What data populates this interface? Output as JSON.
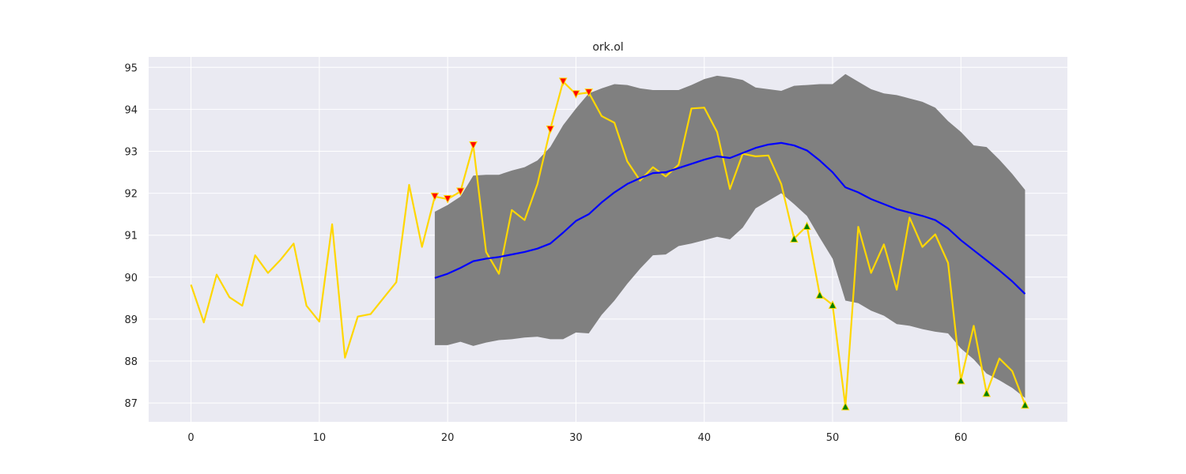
{
  "chart_data": {
    "type": "line",
    "title": "ork.ol",
    "xlabel": "",
    "ylabel": "",
    "xlim": [
      -3.3,
      68.3
    ],
    "ylim": [
      86.55,
      95.25
    ],
    "xticks": [
      0,
      10,
      20,
      30,
      40,
      50,
      60
    ],
    "yticks": [
      87,
      88,
      89,
      90,
      91,
      92,
      93,
      94,
      95
    ],
    "grid": true,
    "legend": "none",
    "colors": {
      "background": "#eaeaf2",
      "grid": "#ffffff",
      "price": "#ffd700",
      "moving_average": "#0000ff",
      "band": "#808080",
      "sell_marker": "#ff0000",
      "buy_marker": "#008000"
    },
    "series": [
      {
        "x": [
          0,
          1,
          2,
          3,
          4,
          5,
          6,
          7,
          8,
          9,
          10,
          11,
          12,
          13,
          14,
          15,
          16,
          17,
          18,
          19,
          20,
          21,
          22,
          23,
          24,
          25,
          26,
          27,
          28,
          29,
          30,
          31,
          32,
          33,
          34,
          35,
          36,
          37,
          38,
          39,
          40,
          41,
          42,
          43,
          44,
          45,
          46,
          47,
          48,
          49,
          50,
          51,
          52,
          53,
          54,
          55,
          56,
          57,
          58,
          59,
          60,
          61,
          62,
          63,
          64,
          65
        ],
        "values": [
          89.82,
          88.92,
          90.06,
          89.52,
          89.32,
          90.52,
          90.1,
          90.42,
          90.8,
          89.32,
          88.94,
          91.26,
          88.08,
          89.06,
          89.12,
          89.5,
          89.88,
          92.2,
          90.72,
          91.92,
          91.86,
          92.04,
          93.14,
          90.6,
          90.08,
          91.6,
          91.36,
          92.22,
          93.52,
          94.66,
          94.36,
          94.4,
          93.84,
          93.68,
          92.76,
          92.3,
          92.62,
          92.4,
          92.68,
          94.02,
          94.04,
          93.46,
          92.1,
          92.94,
          92.88,
          92.9,
          92.22,
          90.92,
          91.22,
          89.58,
          89.34,
          86.92,
          91.2,
          90.1,
          90.78,
          89.7,
          91.42,
          90.72,
          91.02,
          90.34,
          87.54,
          88.84,
          87.24,
          88.06,
          87.76,
          86.96
        ]
      },
      {
        "x": [
          19,
          20,
          21,
          22,
          23,
          24,
          25,
          26,
          27,
          28,
          29,
          30,
          31,
          32,
          33,
          34,
          35,
          36,
          37,
          38,
          39,
          40,
          41,
          42,
          43,
          44,
          45,
          46,
          47,
          48,
          49,
          50,
          51,
          52,
          53,
          54,
          55,
          56,
          57,
          58,
          59,
          60,
          61,
          62,
          63,
          64,
          65
        ],
        "values": [
          89.98,
          90.08,
          90.22,
          90.38,
          90.44,
          90.48,
          90.54,
          90.6,
          90.68,
          90.8,
          91.06,
          91.34,
          91.5,
          91.78,
          92.02,
          92.22,
          92.36,
          92.48,
          92.5,
          92.6,
          92.7,
          92.8,
          92.88,
          92.84,
          92.96,
          93.08,
          93.16,
          93.2,
          93.14,
          93.02,
          92.78,
          92.5,
          92.14,
          92.02,
          91.86,
          91.74,
          91.62,
          91.54,
          91.46,
          91.36,
          91.16,
          90.88,
          90.64,
          90.4,
          90.16,
          89.9,
          89.6
        ]
      }
    ],
    "band": {
      "x": [
        19,
        20,
        21,
        22,
        23,
        24,
        25,
        26,
        27,
        28,
        29,
        30,
        31,
        32,
        33,
        34,
        35,
        36,
        37,
        38,
        39,
        40,
        41,
        42,
        43,
        44,
        45,
        46,
        47,
        48,
        49,
        50,
        51,
        52,
        53,
        54,
        55,
        56,
        57,
        58,
        59,
        60,
        61,
        62,
        63,
        64,
        65
      ],
      "upper": [
        91.56,
        91.72,
        91.92,
        92.42,
        92.44,
        92.44,
        92.54,
        92.62,
        92.78,
        93.1,
        93.62,
        94.02,
        94.38,
        94.5,
        94.6,
        94.58,
        94.5,
        94.46,
        94.46,
        94.46,
        94.58,
        94.72,
        94.8,
        94.76,
        94.7,
        94.52,
        94.48,
        94.44,
        94.56,
        94.58,
        94.6,
        94.6,
        94.84,
        94.66,
        94.48,
        94.38,
        94.34,
        94.26,
        94.18,
        94.04,
        93.72,
        93.46,
        93.14,
        93.1,
        92.8,
        92.46,
        92.08
      ],
      "lower": [
        88.38,
        88.38,
        88.46,
        88.36,
        88.44,
        88.5,
        88.52,
        88.56,
        88.58,
        88.52,
        88.52,
        88.68,
        88.66,
        89.1,
        89.44,
        89.84,
        90.2,
        90.52,
        90.54,
        90.74,
        90.8,
        90.88,
        90.96,
        90.9,
        91.18,
        91.64,
        91.82,
        92.0,
        91.74,
        91.46,
        90.94,
        90.44,
        89.44,
        89.38,
        89.2,
        89.08,
        88.88,
        88.84,
        88.76,
        88.7,
        88.66,
        88.3,
        88.04,
        87.7,
        87.54,
        87.36,
        87.12
      ]
    },
    "sell_markers": {
      "x": [
        19,
        20,
        21,
        22,
        28,
        29,
        30,
        31
      ],
      "values": [
        91.92,
        91.86,
        92.04,
        93.14,
        93.52,
        94.66,
        94.36,
        94.4
      ]
    },
    "buy_markers": {
      "x": [
        47,
        48,
        49,
        50,
        51,
        60,
        62,
        65
      ],
      "values": [
        90.92,
        91.22,
        89.58,
        89.34,
        86.92,
        87.54,
        87.24,
        86.96
      ]
    }
  }
}
